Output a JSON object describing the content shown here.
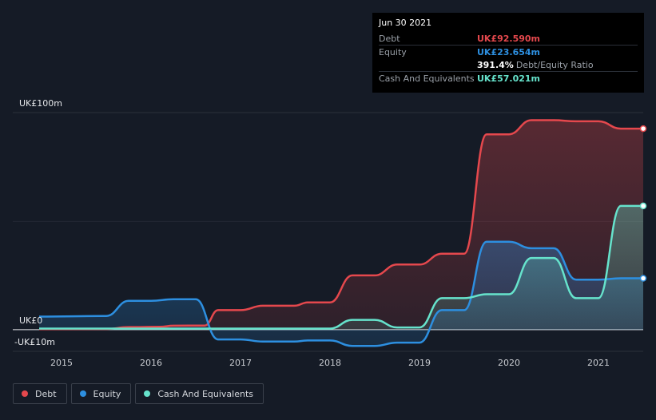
{
  "tooltip": {
    "date": "Jun 30 2021",
    "debt_label": "Debt",
    "debt_value": "UK£92.590m",
    "equity_label": "Equity",
    "equity_value": "UK£23.654m",
    "ratio_value": "391.4%",
    "ratio_label": "Debt/Equity Ratio",
    "cash_label": "Cash And Equivalents",
    "cash_value": "UK£57.021m"
  },
  "legend": [
    {
      "label": "Debt",
      "color": "#e5484d"
    },
    {
      "label": "Equity",
      "color": "#2d8fe0"
    },
    {
      "label": "Cash And Equivalents",
      "color": "#66e3cc"
    }
  ],
  "chart_data": {
    "type": "area",
    "x_tick_labels": [
      "2015",
      "2016",
      "2017",
      "2018",
      "2019",
      "2020",
      "2021"
    ],
    "y_tick_labels": [
      {
        "value": 100,
        "label": "UK£100m"
      },
      {
        "value": 0,
        "label": "UK£0"
      },
      {
        "value": -10,
        "label": "-UK£10m"
      }
    ],
    "ylim": [
      -10,
      100
    ],
    "xlim": [
      2014.7,
      2021.5
    ],
    "series": [
      {
        "name": "Debt",
        "color": "#e5484d",
        "points": [
          [
            2014.75,
            0.2
          ],
          [
            2015.5,
            0.3
          ],
          [
            2015.75,
            1.2
          ],
          [
            2016.1,
            1.3
          ],
          [
            2016.25,
            1.8
          ],
          [
            2016.6,
            1.9
          ],
          [
            2016.75,
            9
          ],
          [
            2017.0,
            9
          ],
          [
            2017.25,
            11
          ],
          [
            2017.6,
            11
          ],
          [
            2017.75,
            12.5
          ],
          [
            2018.0,
            12.5
          ],
          [
            2018.25,
            25
          ],
          [
            2018.5,
            25
          ],
          [
            2018.75,
            30
          ],
          [
            2019.0,
            30
          ],
          [
            2019.25,
            35
          ],
          [
            2019.5,
            35
          ],
          [
            2019.75,
            90
          ],
          [
            2020.0,
            90
          ],
          [
            2020.25,
            96.5
          ],
          [
            2020.5,
            96.5
          ],
          [
            2020.75,
            96
          ],
          [
            2021.0,
            96
          ],
          [
            2021.25,
            92.6
          ],
          [
            2021.5,
            92.6
          ]
        ]
      },
      {
        "name": "Equity",
        "color": "#2d8fe0",
        "points": [
          [
            2014.75,
            6
          ],
          [
            2015.5,
            6.3
          ],
          [
            2015.75,
            13.3
          ],
          [
            2016.0,
            13.3
          ],
          [
            2016.25,
            14
          ],
          [
            2016.5,
            14
          ],
          [
            2016.75,
            -4.5
          ],
          [
            2017.0,
            -4.5
          ],
          [
            2017.25,
            -5.5
          ],
          [
            2017.6,
            -5.5
          ],
          [
            2017.75,
            -5
          ],
          [
            2018.0,
            -5
          ],
          [
            2018.25,
            -7.5
          ],
          [
            2018.5,
            -7.5
          ],
          [
            2018.75,
            -6
          ],
          [
            2019.0,
            -6
          ],
          [
            2019.25,
            9
          ],
          [
            2019.5,
            9
          ],
          [
            2019.75,
            40.5
          ],
          [
            2020.0,
            40.5
          ],
          [
            2020.25,
            37.5
          ],
          [
            2020.5,
            37.5
          ],
          [
            2020.75,
            23
          ],
          [
            2021.0,
            23
          ],
          [
            2021.25,
            23.65
          ],
          [
            2021.5,
            23.65
          ]
        ]
      },
      {
        "name": "Cash And Equivalents",
        "color": "#66e3cc",
        "points": [
          [
            2014.75,
            0.5
          ],
          [
            2016.75,
            0.5
          ],
          [
            2018.0,
            0.5
          ],
          [
            2018.25,
            4.5
          ],
          [
            2018.5,
            4.5
          ],
          [
            2018.75,
            1
          ],
          [
            2019.0,
            1
          ],
          [
            2019.25,
            14.5
          ],
          [
            2019.5,
            14.5
          ],
          [
            2019.75,
            16.3
          ],
          [
            2020.0,
            16.3
          ],
          [
            2020.25,
            33
          ],
          [
            2020.5,
            33
          ],
          [
            2020.75,
            14.5
          ],
          [
            2021.0,
            14.5
          ],
          [
            2021.25,
            57
          ],
          [
            2021.5,
            57
          ]
        ]
      }
    ],
    "grid": true
  }
}
